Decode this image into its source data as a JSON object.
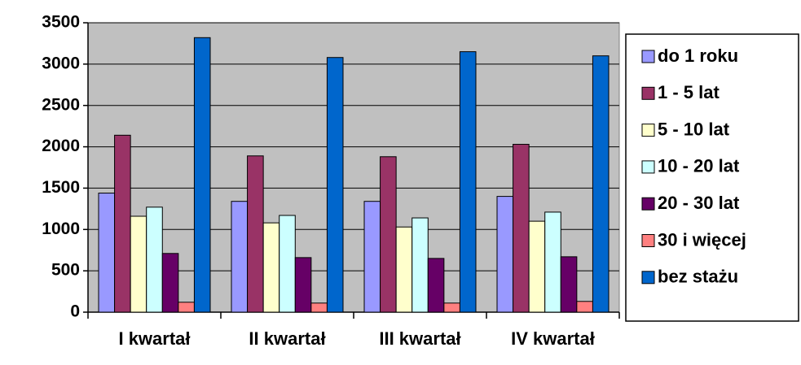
{
  "chart_data": {
    "type": "bar",
    "categories": [
      "I kwartał",
      "II kwartał",
      "III kwartał",
      "IV kwartał"
    ],
    "series": [
      {
        "name": "do 1 roku",
        "color": "#9999ff",
        "values": [
          1440,
          1340,
          1340,
          1400
        ]
      },
      {
        "name": "1 - 5 lat",
        "color": "#993366",
        "values": [
          2140,
          1890,
          1880,
          2030
        ]
      },
      {
        "name": "5 - 10 lat",
        "color": "#ffffcc",
        "values": [
          1160,
          1080,
          1030,
          1100
        ]
      },
      {
        "name": "10 - 20 lat",
        "color": "#ccffff",
        "values": [
          1270,
          1170,
          1140,
          1210
        ]
      },
      {
        "name": "20 - 30 lat",
        "color": "#660066",
        "values": [
          710,
          660,
          650,
          670
        ]
      },
      {
        "name": "30 i więcej",
        "color": "#ff8080",
        "values": [
          120,
          110,
          110,
          130
        ]
      },
      {
        "name": "bez stażu",
        "color": "#0066cc",
        "values": [
          3320,
          3080,
          3150,
          3100
        ]
      }
    ],
    "ylim": [
      0,
      3500
    ],
    "yticks": [
      0,
      500,
      1000,
      1500,
      2000,
      2500,
      3000,
      3500
    ],
    "grid": true,
    "legend": "right",
    "plot_background": "#c0c0c0"
  }
}
